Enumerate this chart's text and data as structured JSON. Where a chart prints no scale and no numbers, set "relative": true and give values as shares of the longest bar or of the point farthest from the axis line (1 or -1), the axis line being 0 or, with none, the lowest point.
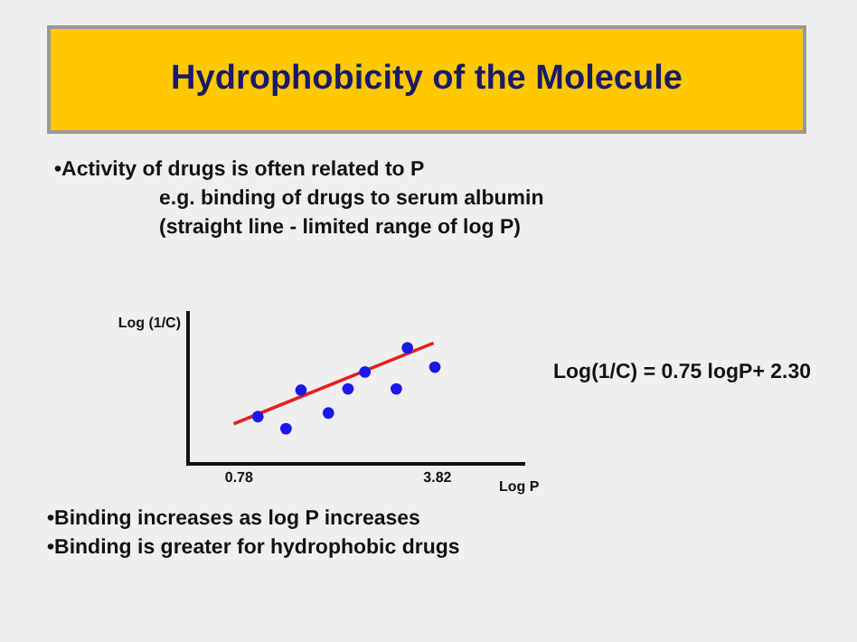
{
  "chart_data": {
    "type": "scatter",
    "title": "Hydrophobicity of the Molecule",
    "xlabel": "Log P",
    "ylabel": "Log (1/C)",
    "relative": true,
    "xlim": [
      0,
      5.15
    ],
    "xticks": [
      0.78,
      3.82
    ],
    "grid": false,
    "legend": false,
    "marker": "circle",
    "series": [
      {
        "color": "#1a1ae6",
        "x": [
          1.07,
          1.5,
          1.73,
          2.15,
          2.45,
          2.71,
          3.19,
          3.36,
          3.78
        ],
        "values": [
          0.39,
          0.29,
          0.61,
          0.42,
          0.62,
          0.76,
          0.62,
          0.96,
          0.8
        ]
      },
      {
        "type": "line",
        "color": "#e62020",
        "x": [
          0.7,
          3.76
        ],
        "values": [
          0.33,
          1
        ],
        "marker": "none"
      }
    ],
    "annotations": [
      "•Activity of drugs is often related to P",
      "e.g. binding of drugs to serum albumin",
      "(straight line - limited range of log P)",
      "Log(1/C) = 0.75 logP+ 2.30",
      "•Binding increases as log P increases",
      "•Binding is greater for hydrophobic drugs"
    ]
  }
}
